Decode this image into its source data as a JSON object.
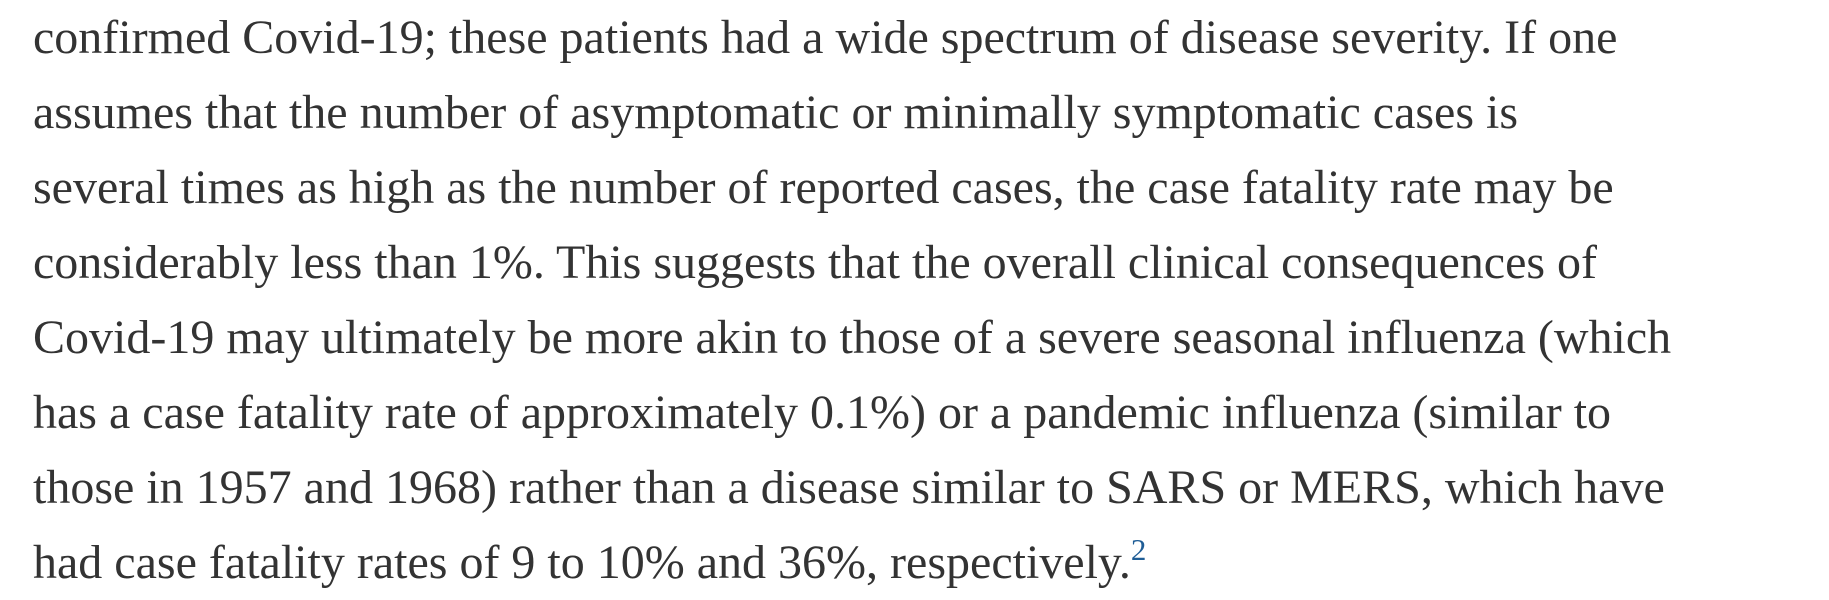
{
  "article": {
    "paragraph": {
      "lines": [
        "confirmed Covid-19; these patients had a wide spectrum of disease severity. If one",
        "assumes that the number of asymptomatic or minimally symptomatic cases is",
        "several times as high as the number of reported cases, the case fatality rate may be",
        "considerably less than 1%. This suggests that the overall clinical consequences of",
        "Covid-19 may ultimately be more akin to those of a severe seasonal influenza (which",
        "has a case fatality rate of approximately 0.1%) or a pandemic influenza (similar to",
        "those in 1957 and 1968) rather than a disease similar to SARS or MERS, which have",
        "had case fatality rates of 9 to 10% and 36%, respectively."
      ],
      "reference_label": "2"
    }
  },
  "colors": {
    "text": "#333333",
    "reference_link": "#1f5d96",
    "background": "#ffffff"
  }
}
